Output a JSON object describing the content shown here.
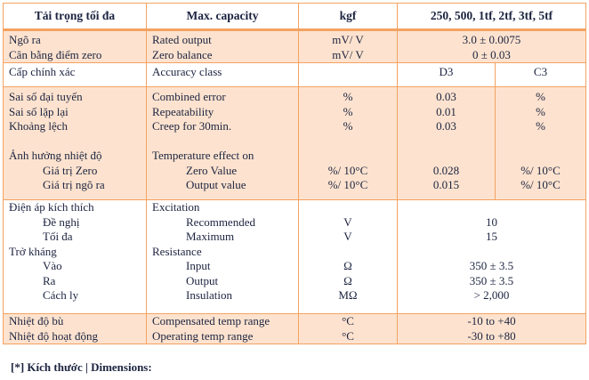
{
  "header": [
    "Tải trọng tối đa",
    "Max. capacity",
    "kgf",
    "250, 500, 1tf, 2tf, 3tf, 5tf"
  ],
  "g1": {
    "vi": [
      "Ngõ ra",
      "Cân bằng điểm zero"
    ],
    "en": [
      "Rated output",
      "Zero balance"
    ],
    "unit": [
      "mV/ V",
      "mV/ V"
    ],
    "val": [
      "3.0 ± 0.0075",
      "0 ± 0.03"
    ]
  },
  "g2": {
    "vi": "Cấp chính xác",
    "en": "Accuracy class",
    "d3": "D3",
    "c3": "C3"
  },
  "g3": {
    "vi": [
      "Sai số đại tuyến",
      "Sai số lặp lại",
      "Khoảng lệch",
      "",
      "Ảnh hưởng nhiệt độ",
      "Giá trị Zero",
      "Giá trị ngõ ra"
    ],
    "en": [
      "Combined error",
      "Repeatability",
      "Creep for 30min.",
      "",
      "Temperature effect on",
      "Zero Value",
      "Output value"
    ],
    "unit": [
      "%",
      "%",
      "%",
      "",
      "",
      "%/ 10°C",
      "%/ 10°C"
    ],
    "d3": [
      "0.03",
      "0.01",
      "0.03",
      "",
      "",
      "0.028",
      "0.015"
    ],
    "c3": [
      "%",
      "%",
      "%",
      "",
      "",
      "%/ 10°C",
      "%/ 10°C"
    ]
  },
  "g4": {
    "vi": [
      "Điện áp kích thích",
      "Đề nghị",
      "Tối đa",
      "Trở kháng",
      "Vào",
      "Ra",
      "Cách ly"
    ],
    "en": [
      "Excitation",
      "Recommended",
      "Maximum",
      "Resistance",
      "Input",
      "Output",
      "Insulation"
    ],
    "unit": [
      "",
      "V",
      "V",
      "",
      "Ω",
      "Ω",
      "MΩ"
    ],
    "val": [
      "",
      "10",
      "15",
      "",
      "350 ± 3.5",
      "350 ± 3.5",
      "> 2,000"
    ]
  },
  "g5": {
    "vi": [
      "Nhiệt độ bù",
      "Nhiệt độ hoạt động"
    ],
    "en": [
      "Compensated temp range",
      "Operating temp range"
    ],
    "unit": [
      "°C",
      "°C"
    ],
    "val": [
      "-10 to +40",
      "-30 to +80"
    ]
  },
  "footer": "[*] Kích thước | Dimensions:",
  "colors": {
    "border": "#f4a261",
    "shade": "#fde3cf",
    "text": "#1c2340"
  }
}
